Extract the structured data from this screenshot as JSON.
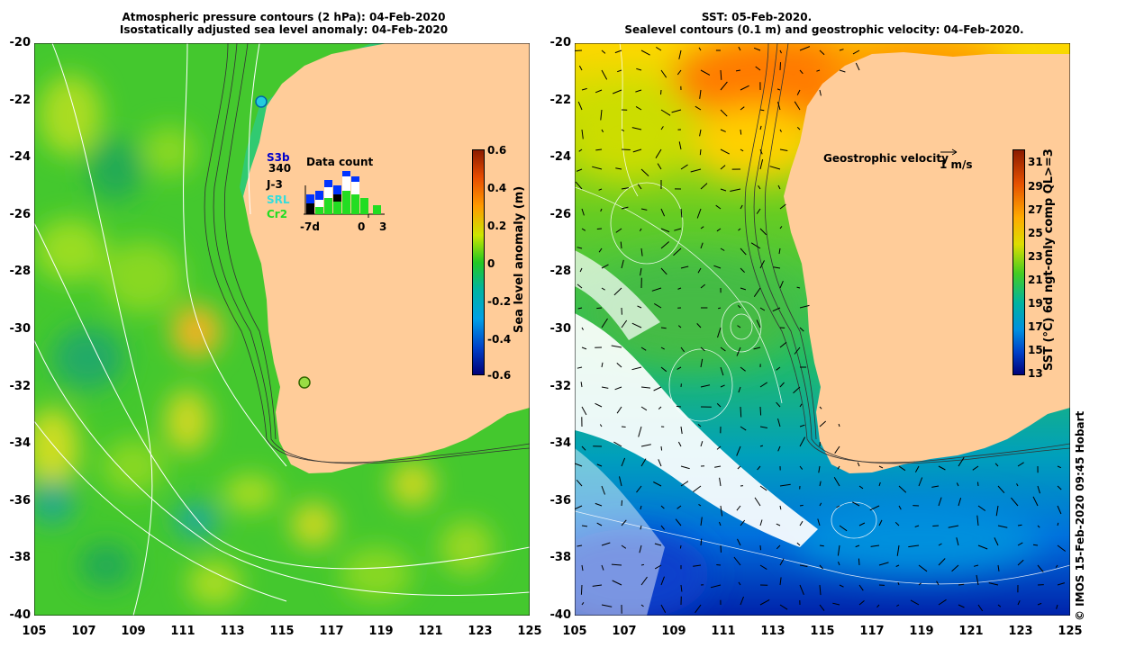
{
  "left_panel": {
    "title_line1": "Atmospheric pressure contours (2 hPa): 04-Feb-2020",
    "title_line2": "Isostatically adjusted sea level anomaly: 04-Feb-2020",
    "colorbar": {
      "label": "Sea level anomaly (m)",
      "ticks": [
        "0.6",
        "0.4",
        "0.2",
        "0",
        "-0.2",
        "-0.4",
        "-0.6"
      ],
      "range": [
        -0.6,
        0.6
      ]
    },
    "data_count": {
      "title": "Data count",
      "satellites": [
        {
          "name": "S3b",
          "color": "#0000cc"
        },
        {
          "name": "340",
          "color": "#000000"
        },
        {
          "name": "J-3",
          "color": "#000000"
        },
        {
          "name": "SRL",
          "color": "#33cccc"
        },
        {
          "name": "Cr2",
          "color": "#22dd22"
        }
      ],
      "xaxis_labels": [
        "-7d",
        "0",
        "3"
      ]
    }
  },
  "right_panel": {
    "title_line1": "SST: 05-Feb-2020.",
    "title_line2": "Sealevel contours (0.1 m) and geostrophic velocity: 04-Feb-2020.",
    "velocity_legend": "Geostrophic velocity",
    "velocity_scale": "1 m/s",
    "colorbar": {
      "label": "SST (°C) 6d ngt-only comp QL>=3",
      "ticks": [
        "31",
        "29",
        "27",
        "25",
        "23",
        "21",
        "19",
        "17",
        "15",
        "13"
      ],
      "range": [
        13,
        32
      ]
    }
  },
  "axes": {
    "lat_ticks": [
      "-20",
      "-22",
      "-24",
      "-26",
      "-28",
      "-30",
      "-32",
      "-34",
      "-36",
      "-38",
      "-40"
    ],
    "lon_ticks": [
      "105",
      "107",
      "109",
      "111",
      "113",
      "115",
      "117",
      "119",
      "121",
      "123",
      "125"
    ]
  },
  "credit": "© IMOS 15-Feb-2020 09:45 Hobart",
  "colors": {
    "land": "#ffcc99",
    "sla_ocean": "#44c82e",
    "sst_ocean": "#33bb55"
  }
}
